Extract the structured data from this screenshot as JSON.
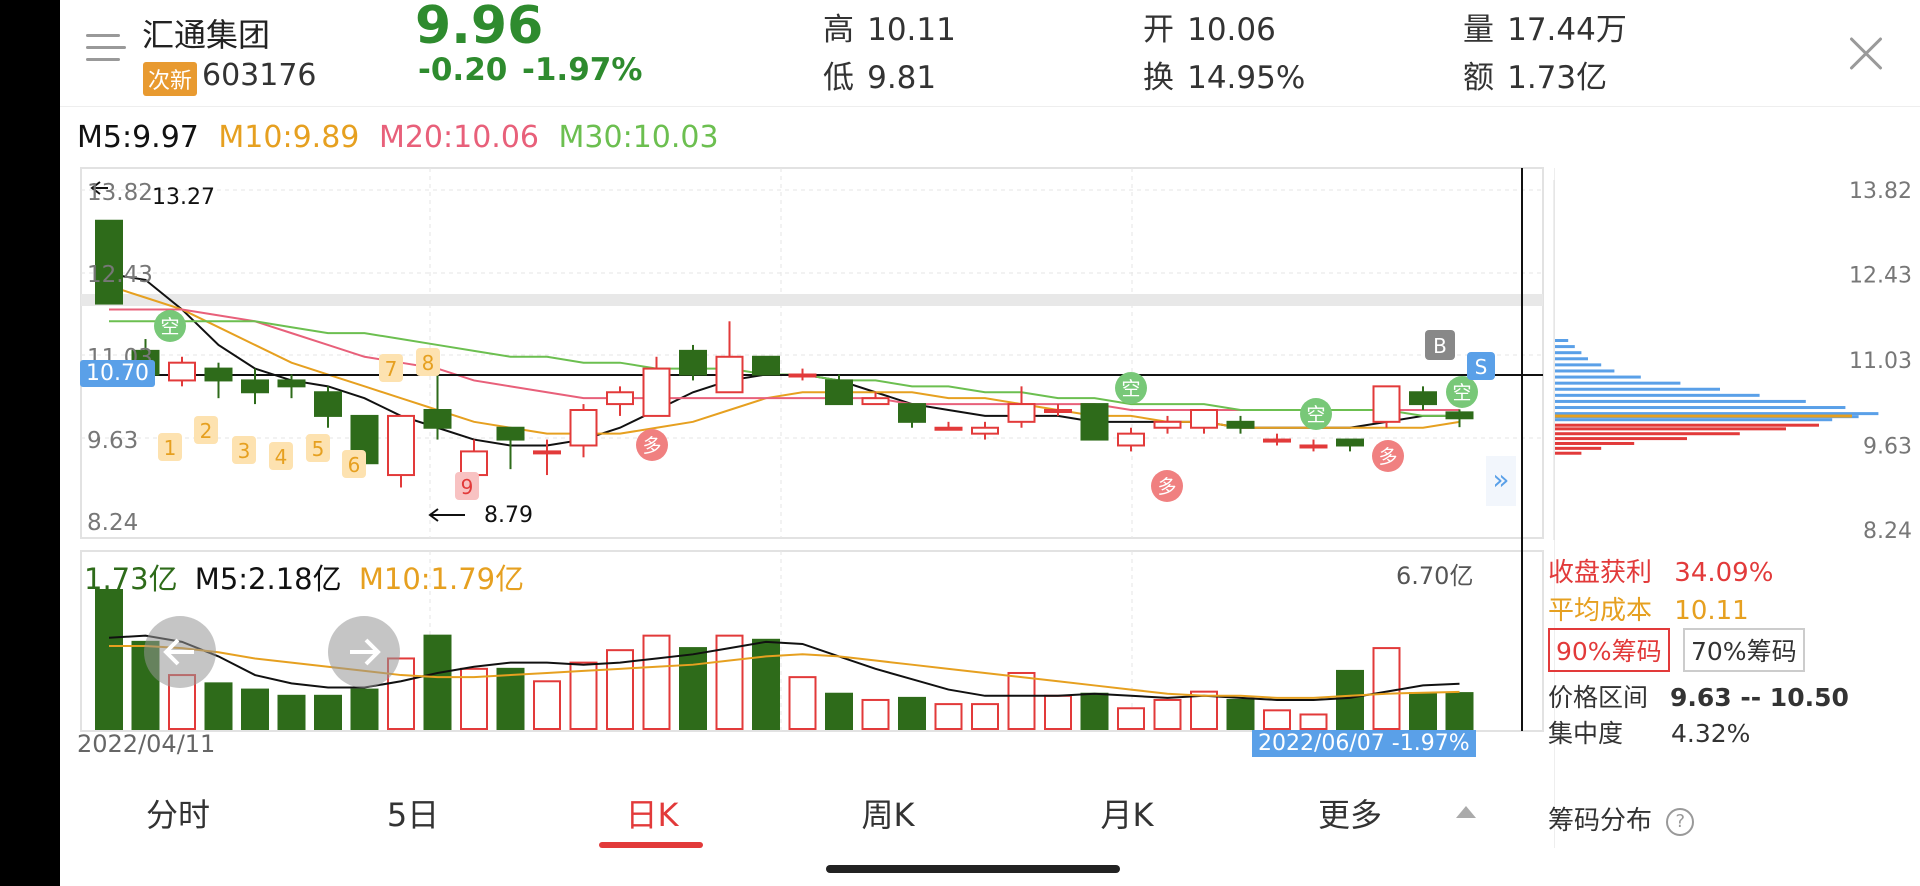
{
  "header": {
    "stock_name": "汇通集团",
    "badge": "次新",
    "code": "603176",
    "price": "9.96",
    "change": "-0.20",
    "change_pct": "-1.97%",
    "high_label": "高",
    "high": "10.11",
    "low_label": "低",
    "low": "9.81",
    "open_label": "开",
    "open": "10.06",
    "turnover_label": "换",
    "turnover": "14.95%",
    "volume_label": "量",
    "volume": "17.44万",
    "amount_label": "额",
    "amount": "1.73亿"
  },
  "ma_legend": {
    "m5": "M5:9.97",
    "m10": "M10:9.89",
    "m20": "M20:10.06",
    "m30": "M30:10.03"
  },
  "colors": {
    "up": "#e23a3a",
    "down": "#2e6b1a",
    "m5": "#111111",
    "m10": "#e6a020",
    "m20": "#e8607a",
    "m30": "#6cbf50",
    "accent_blue": "#5aa0e8"
  },
  "price_axis": [
    "13.82",
    "12.43",
    "11.03",
    "9.63",
    "8.24"
  ],
  "annotations": {
    "high_mark": "13.27",
    "low_mark": "8.79",
    "crosshair_price": "10.70",
    "numbers": [
      "1",
      "2",
      "3",
      "4",
      "5",
      "6",
      "7",
      "8",
      "9"
    ],
    "signal_short": "空",
    "signal_long": "多",
    "buy": "B",
    "sell": "S"
  },
  "volume": {
    "current": "1.73亿",
    "m5": "M5:2.18亿",
    "m10": "M10:1.79亿",
    "max": "6.70亿"
  },
  "date_start": "2022/04/11",
  "crosshair_tag": "2022/06/07 -1.97%",
  "tabs": [
    "分时",
    "5日",
    "日K",
    "周K",
    "月K",
    "更多"
  ],
  "chips": {
    "axis": [
      "13.82",
      "12.43",
      "11.03",
      "9.63",
      "8.24"
    ],
    "profit_label": "收盘获利",
    "profit": "34.09%",
    "avg_label": "平均成本",
    "avg": "10.11",
    "btn90": "90%筹码",
    "btn70": "70%筹码",
    "range_label": "价格区间",
    "range": "9.63 -- 10.50",
    "conc_label": "集中度",
    "conc": "4.32%",
    "dist_label": "筹码分布"
  },
  "expand_glyph": "»"
}
